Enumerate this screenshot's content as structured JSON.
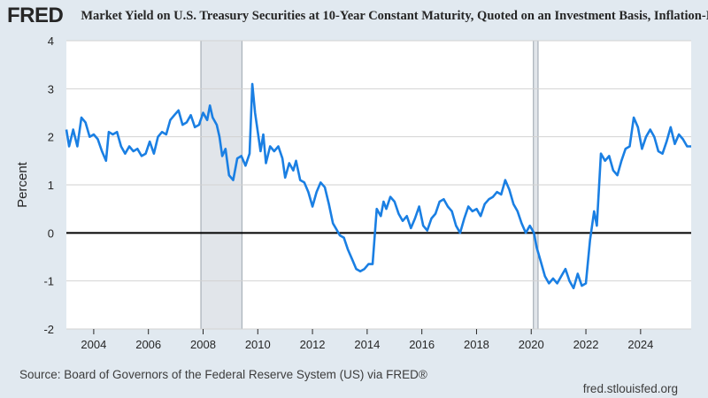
{
  "header": {
    "logo_text": "FRED",
    "logo_icon": "trend-line-icon",
    "series_title": "Market Yield on U.S. Treasury Securities at 10-Year Constant Maturity, Quoted on an Investment Basis, Inflation-Indexed",
    "series_color": "#1a7fe3"
  },
  "footer": {
    "source": "Source: Board of Governors of the Federal Reserve System (US) via FRED®",
    "site": "fred.stlouisfed.org"
  },
  "chart_data": {
    "type": "line",
    "ylabel": "Percent",
    "xlabel": "",
    "ylim": [
      -2,
      4
    ],
    "xlim": [
      2003.0,
      2025.85
    ],
    "yticks": [
      -2,
      -1,
      0,
      1,
      2,
      3,
      4
    ],
    "xticks": [
      2004,
      2006,
      2008,
      2010,
      2012,
      2014,
      2016,
      2018,
      2020,
      2022,
      2024
    ],
    "grid": true,
    "recessions": [
      [
        2007.92,
        2009.42
      ],
      [
        2020.08,
        2020.25
      ]
    ],
    "series": [
      {
        "values": [
          [
            2003.0,
            2.15
          ],
          [
            2003.1,
            1.8
          ],
          [
            2003.25,
            2.15
          ],
          [
            2003.4,
            1.8
          ],
          [
            2003.55,
            2.4
          ],
          [
            2003.7,
            2.3
          ],
          [
            2003.85,
            2.0
          ],
          [
            2004.0,
            2.05
          ],
          [
            2004.15,
            1.95
          ],
          [
            2004.3,
            1.7
          ],
          [
            2004.45,
            1.5
          ],
          [
            2004.55,
            2.1
          ],
          [
            2004.7,
            2.05
          ],
          [
            2004.85,
            2.1
          ],
          [
            2005.0,
            1.8
          ],
          [
            2005.15,
            1.65
          ],
          [
            2005.3,
            1.8
          ],
          [
            2005.45,
            1.7
          ],
          [
            2005.6,
            1.75
          ],
          [
            2005.75,
            1.6
          ],
          [
            2005.9,
            1.65
          ],
          [
            2006.05,
            1.9
          ],
          [
            2006.2,
            1.65
          ],
          [
            2006.35,
            2.0
          ],
          [
            2006.5,
            2.1
          ],
          [
            2006.65,
            2.05
          ],
          [
            2006.8,
            2.35
          ],
          [
            2006.95,
            2.45
          ],
          [
            2007.1,
            2.55
          ],
          [
            2007.25,
            2.25
          ],
          [
            2007.4,
            2.3
          ],
          [
            2007.55,
            2.45
          ],
          [
            2007.7,
            2.2
          ],
          [
            2007.85,
            2.25
          ],
          [
            2008.0,
            2.5
          ],
          [
            2008.15,
            2.35
          ],
          [
            2008.25,
            2.65
          ],
          [
            2008.35,
            2.4
          ],
          [
            2008.5,
            2.25
          ],
          [
            2008.6,
            2.0
          ],
          [
            2008.7,
            1.6
          ],
          [
            2008.82,
            1.75
          ],
          [
            2008.95,
            1.2
          ],
          [
            2009.1,
            1.1
          ],
          [
            2009.25,
            1.55
          ],
          [
            2009.4,
            1.6
          ],
          [
            2009.55,
            1.4
          ],
          [
            2009.7,
            1.65
          ],
          [
            2009.8,
            3.1
          ],
          [
            2009.9,
            2.5
          ],
          [
            2010.0,
            2.1
          ],
          [
            2010.1,
            1.7
          ],
          [
            2010.2,
            2.05
          ],
          [
            2010.3,
            1.45
          ],
          [
            2010.45,
            1.8
          ],
          [
            2010.6,
            1.7
          ],
          [
            2010.75,
            1.8
          ],
          [
            2010.9,
            1.55
          ],
          [
            2011.0,
            1.15
          ],
          [
            2011.15,
            1.45
          ],
          [
            2011.3,
            1.3
          ],
          [
            2011.4,
            1.5
          ],
          [
            2011.55,
            1.1
          ],
          [
            2011.7,
            1.05
          ],
          [
            2011.85,
            0.85
          ],
          [
            2012.0,
            0.55
          ],
          [
            2012.15,
            0.85
          ],
          [
            2012.3,
            1.05
          ],
          [
            2012.45,
            0.95
          ],
          [
            2012.6,
            0.6
          ],
          [
            2012.75,
            0.2
          ],
          [
            2012.9,
            0.05
          ],
          [
            2013.0,
            -0.05
          ],
          [
            2013.15,
            -0.1
          ],
          [
            2013.3,
            -0.35
          ],
          [
            2013.45,
            -0.55
          ],
          [
            2013.6,
            -0.75
          ],
          [
            2013.75,
            -0.8
          ],
          [
            2013.9,
            -0.75
          ],
          [
            2014.05,
            -0.65
          ],
          [
            2014.2,
            -0.65
          ],
          [
            2014.35,
            0.5
          ],
          [
            2014.5,
            0.35
          ],
          [
            2014.6,
            0.65
          ],
          [
            2014.7,
            0.5
          ],
          [
            2014.85,
            0.75
          ],
          [
            2015.0,
            0.65
          ],
          [
            2015.15,
            0.4
          ],
          [
            2015.3,
            0.25
          ],
          [
            2015.45,
            0.35
          ],
          [
            2015.6,
            0.1
          ],
          [
            2015.75,
            0.3
          ],
          [
            2015.9,
            0.55
          ],
          [
            2016.05,
            0.15
          ],
          [
            2016.2,
            0.05
          ],
          [
            2016.35,
            0.3
          ],
          [
            2016.5,
            0.4
          ],
          [
            2016.65,
            0.65
          ],
          [
            2016.8,
            0.7
          ],
          [
            2016.95,
            0.55
          ],
          [
            2017.1,
            0.45
          ],
          [
            2017.25,
            0.15
          ],
          [
            2017.4,
            0.0
          ],
          [
            2017.55,
            0.3
          ],
          [
            2017.7,
            0.55
          ],
          [
            2017.85,
            0.45
          ],
          [
            2018.0,
            0.5
          ],
          [
            2018.15,
            0.35
          ],
          [
            2018.3,
            0.6
          ],
          [
            2018.45,
            0.7
          ],
          [
            2018.6,
            0.75
          ],
          [
            2018.75,
            0.85
          ],
          [
            2018.9,
            0.8
          ],
          [
            2019.05,
            1.1
          ],
          [
            2019.2,
            0.9
          ],
          [
            2019.35,
            0.6
          ],
          [
            2019.5,
            0.45
          ],
          [
            2019.65,
            0.2
          ],
          [
            2019.8,
            0.0
          ],
          [
            2019.95,
            0.15
          ],
          [
            2020.1,
            0.0
          ],
          [
            2020.2,
            -0.3
          ],
          [
            2020.35,
            -0.6
          ],
          [
            2020.5,
            -0.9
          ],
          [
            2020.65,
            -1.05
          ],
          [
            2020.8,
            -0.95
          ],
          [
            2020.95,
            -1.05
          ],
          [
            2021.1,
            -0.9
          ],
          [
            2021.25,
            -0.75
          ],
          [
            2021.4,
            -1.0
          ],
          [
            2021.55,
            -1.15
          ],
          [
            2021.7,
            -0.85
          ],
          [
            2021.85,
            -1.1
          ],
          [
            2022.0,
            -1.05
          ],
          [
            2022.15,
            -0.15
          ],
          [
            2022.3,
            0.45
          ],
          [
            2022.4,
            0.15
          ],
          [
            2022.55,
            1.65
          ],
          [
            2022.7,
            1.5
          ],
          [
            2022.85,
            1.6
          ],
          [
            2023.0,
            1.3
          ],
          [
            2023.15,
            1.2
          ],
          [
            2023.3,
            1.5
          ],
          [
            2023.45,
            1.75
          ],
          [
            2023.6,
            1.8
          ],
          [
            2023.75,
            2.4
          ],
          [
            2023.9,
            2.2
          ],
          [
            2024.05,
            1.75
          ],
          [
            2024.2,
            2.0
          ],
          [
            2024.35,
            2.15
          ],
          [
            2024.5,
            2.0
          ],
          [
            2024.65,
            1.7
          ],
          [
            2024.8,
            1.65
          ],
          [
            2024.95,
            1.9
          ],
          [
            2025.1,
            2.2
          ],
          [
            2025.25,
            1.85
          ],
          [
            2025.4,
            2.05
          ],
          [
            2025.55,
            1.95
          ],
          [
            2025.7,
            1.8
          ],
          [
            2025.85,
            1.8
          ]
        ]
      }
    ]
  }
}
